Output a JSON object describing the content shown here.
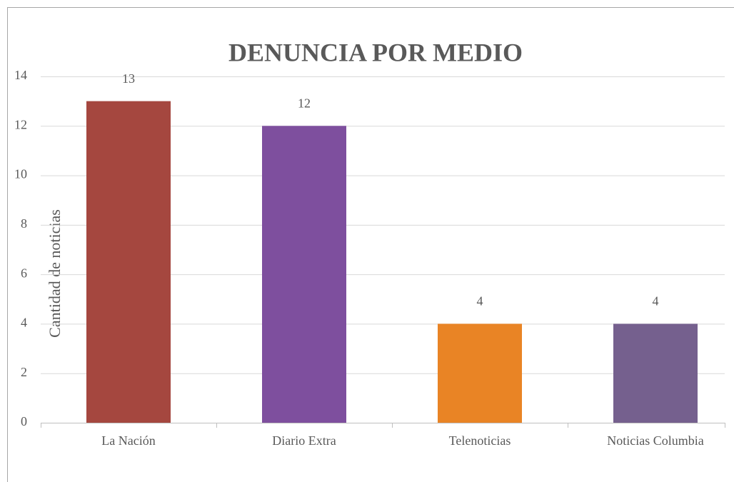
{
  "chart_data": {
    "type": "bar",
    "title": "DENUNCIA POR MEDIO",
    "y_label": "Cantidad de noticias",
    "categories": [
      "La Nación",
      "Diario Extra",
      "Telenoticias",
      "Noticias Columbia"
    ],
    "values": [
      13,
      12,
      4,
      4
    ],
    "colors": [
      "#a5473f",
      "#7e4f9e",
      "#e98425",
      "#75608e"
    ],
    "ylim": [
      0,
      14
    ],
    "yticks": [
      0,
      2,
      4,
      6,
      8,
      10,
      12,
      14
    ],
    "grid": true,
    "data_labels": true
  }
}
